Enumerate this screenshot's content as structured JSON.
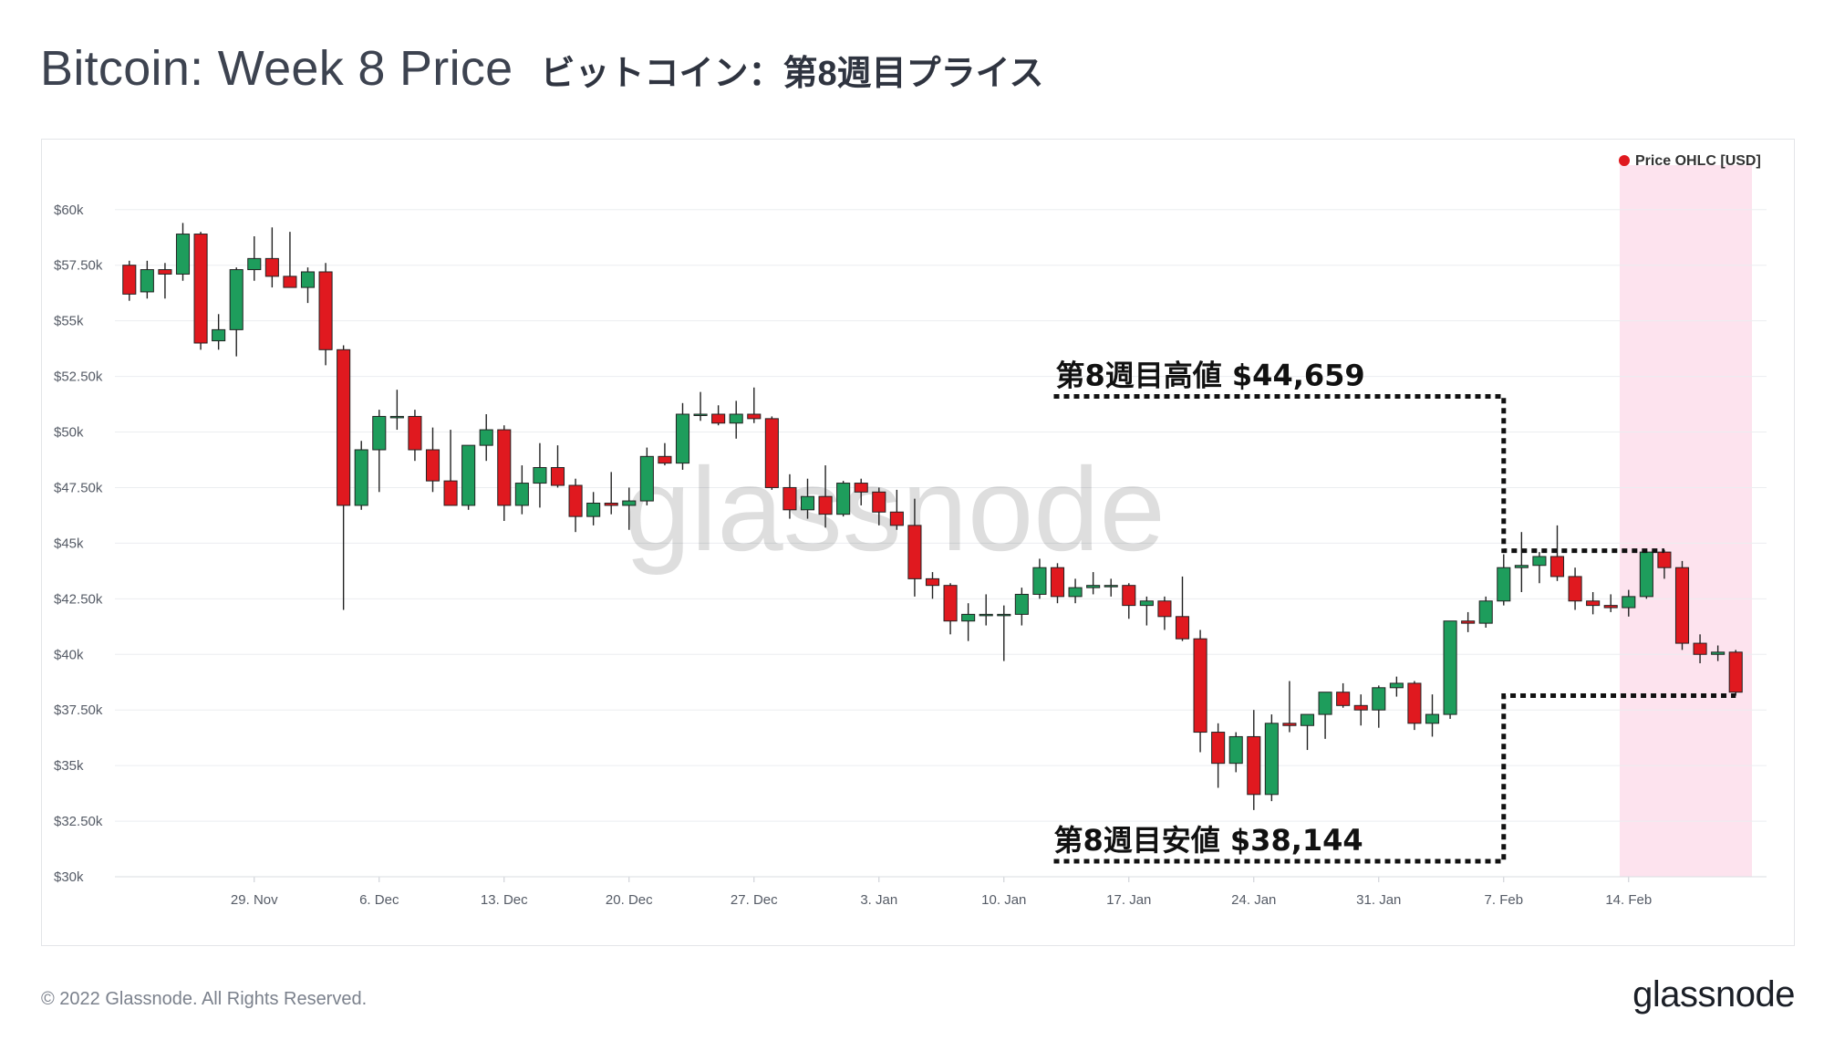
{
  "header": {
    "title_en": "Bitcoin: Week 8 Price",
    "title_ja": "ビットコイン：第8週目プライス"
  },
  "footer": {
    "copyright": "© 2022 Glassnode. All Rights Reserved.",
    "brand": "glassnode"
  },
  "chart_data": {
    "type": "candlestick",
    "watermark": "glassnode",
    "legend": {
      "label": "Price OHLC [USD]",
      "color": "#e0191f",
      "position": "top-right"
    },
    "y_axis": {
      "min": 30000,
      "max": 62000,
      "ticks": [
        30000,
        32500,
        35000,
        37500,
        40000,
        42500,
        45000,
        47500,
        50000,
        52500,
        55000,
        57500,
        60000
      ],
      "tick_labels": [
        "$30k",
        "$32.50k",
        "$35k",
        "$37.50k",
        "$40k",
        "$42.50k",
        "$45k",
        "$47.50k",
        "$50k",
        "$52.50k",
        "$55k",
        "$57.50k",
        "$60k"
      ],
      "grid": true
    },
    "x_axis": {
      "start": "2021-11-22",
      "end": "2022-02-20",
      "tick_labels": [
        "29. Nov",
        "6. Dec",
        "13. Dec",
        "20. Dec",
        "27. Dec",
        "3. Jan",
        "10. Jan",
        "17. Jan",
        "24. Jan",
        "31. Jan",
        "7. Feb",
        "14. Feb"
      ],
      "tick_dates": [
        "2021-11-29",
        "2021-12-06",
        "2021-12-13",
        "2021-12-20",
        "2021-12-27",
        "2022-01-03",
        "2022-01-10",
        "2022-01-17",
        "2022-01-24",
        "2022-01-31",
        "2022-02-07",
        "2022-02-14"
      ]
    },
    "highlight_range": {
      "start": "2022-02-14",
      "end": "2022-02-20",
      "color": "#fde3ee"
    },
    "colors": {
      "up": "#1e9d5c",
      "down": "#e0191f",
      "wick": "#222222"
    },
    "annotations": [
      {
        "text": "第8週目高値 $44,659",
        "value": 44659,
        "line_y": 51600
      },
      {
        "text": "第8週目安値 $38,144",
        "value": 38144,
        "line_y": 30700
      }
    ],
    "candles": [
      {
        "date": "2021-11-22",
        "open": 57500,
        "high": 57700,
        "low": 55900,
        "close": 56200
      },
      {
        "date": "2021-11-23",
        "open": 56300,
        "high": 57700,
        "low": 56000,
        "close": 57300
      },
      {
        "date": "2021-11-24",
        "open": 57300,
        "high": 57600,
        "low": 56000,
        "close": 57100
      },
      {
        "date": "2021-11-25",
        "open": 57100,
        "high": 59400,
        "low": 56800,
        "close": 58900
      },
      {
        "date": "2021-11-26",
        "open": 58900,
        "high": 59000,
        "low": 53700,
        "close": 54000
      },
      {
        "date": "2021-11-27",
        "open": 54100,
        "high": 55300,
        "low": 53700,
        "close": 54600
      },
      {
        "date": "2021-11-28",
        "open": 54600,
        "high": 57400,
        "low": 53400,
        "close": 57300
      },
      {
        "date": "2021-11-29",
        "open": 57300,
        "high": 58800,
        "low": 56800,
        "close": 57800
      },
      {
        "date": "2021-11-30",
        "open": 57800,
        "high": 59200,
        "low": 56500,
        "close": 57000
      },
      {
        "date": "2021-12-01",
        "open": 57000,
        "high": 59000,
        "low": 56500,
        "close": 56500
      },
      {
        "date": "2021-12-02",
        "open": 56500,
        "high": 57400,
        "low": 55800,
        "close": 57200
      },
      {
        "date": "2021-12-03",
        "open": 57200,
        "high": 57600,
        "low": 53000,
        "close": 53700
      },
      {
        "date": "2021-12-04",
        "open": 53700,
        "high": 53900,
        "low": 42000,
        "close": 46700
      },
      {
        "date": "2021-12-05",
        "open": 46700,
        "high": 49600,
        "low": 46500,
        "close": 49200
      },
      {
        "date": "2021-12-06",
        "open": 49200,
        "high": 51000,
        "low": 47300,
        "close": 50700
      },
      {
        "date": "2021-12-07",
        "open": 50700,
        "high": 51900,
        "low": 50100,
        "close": 50700
      },
      {
        "date": "2021-12-08",
        "open": 50700,
        "high": 51000,
        "low": 48700,
        "close": 49200
      },
      {
        "date": "2021-12-09",
        "open": 49200,
        "high": 50200,
        "low": 47300,
        "close": 47800
      },
      {
        "date": "2021-12-10",
        "open": 47800,
        "high": 50100,
        "low": 47000,
        "close": 46700
      },
      {
        "date": "2021-12-11",
        "open": 46700,
        "high": 49400,
        "low": 46500,
        "close": 49400
      },
      {
        "date": "2021-12-12",
        "open": 49400,
        "high": 50800,
        "low": 48700,
        "close": 50100
      },
      {
        "date": "2021-12-13",
        "open": 50100,
        "high": 50300,
        "low": 46000,
        "close": 46700
      },
      {
        "date": "2021-12-14",
        "open": 46700,
        "high": 48500,
        "low": 46300,
        "close": 47700
      },
      {
        "date": "2021-12-15",
        "open": 47700,
        "high": 49500,
        "low": 46600,
        "close": 48400
      },
      {
        "date": "2021-12-16",
        "open": 48400,
        "high": 49400,
        "low": 47500,
        "close": 47600
      },
      {
        "date": "2021-12-17",
        "open": 47600,
        "high": 47900,
        "low": 45500,
        "close": 46200
      },
      {
        "date": "2021-12-18",
        "open": 46200,
        "high": 47300,
        "low": 45800,
        "close": 46800
      },
      {
        "date": "2021-12-19",
        "open": 46800,
        "high": 48200,
        "low": 46300,
        "close": 46700
      },
      {
        "date": "2021-12-20",
        "open": 46700,
        "high": 47500,
        "low": 45600,
        "close": 46900
      },
      {
        "date": "2021-12-21",
        "open": 46900,
        "high": 49300,
        "low": 46700,
        "close": 48900
      },
      {
        "date": "2021-12-22",
        "open": 48900,
        "high": 49500,
        "low": 48500,
        "close": 48600
      },
      {
        "date": "2021-12-23",
        "open": 48600,
        "high": 51300,
        "low": 48300,
        "close": 50800
      },
      {
        "date": "2021-12-24",
        "open": 50800,
        "high": 51800,
        "low": 50500,
        "close": 50800
      },
      {
        "date": "2021-12-25",
        "open": 50800,
        "high": 51200,
        "low": 50300,
        "close": 50400
      },
      {
        "date": "2021-12-26",
        "open": 50400,
        "high": 51400,
        "low": 49700,
        "close": 50800
      },
      {
        "date": "2021-12-27",
        "open": 50800,
        "high": 52000,
        "low": 50400,
        "close": 50600
      },
      {
        "date": "2021-12-28",
        "open": 50600,
        "high": 50700,
        "low": 47400,
        "close": 47500
      },
      {
        "date": "2021-12-29",
        "open": 47500,
        "high": 48100,
        "low": 46100,
        "close": 46500
      },
      {
        "date": "2021-12-30",
        "open": 46500,
        "high": 47900,
        "low": 46100,
        "close": 47100
      },
      {
        "date": "2021-12-31",
        "open": 47100,
        "high": 48500,
        "low": 45700,
        "close": 46300
      },
      {
        "date": "2022-01-01",
        "open": 46300,
        "high": 47800,
        "low": 46200,
        "close": 47700
      },
      {
        "date": "2022-01-02",
        "open": 47700,
        "high": 47900,
        "low": 46700,
        "close": 47300
      },
      {
        "date": "2022-01-03",
        "open": 47300,
        "high": 47500,
        "low": 45800,
        "close": 46400
      },
      {
        "date": "2022-01-04",
        "open": 46400,
        "high": 47400,
        "low": 45600,
        "close": 45800
      },
      {
        "date": "2022-01-05",
        "open": 45800,
        "high": 47000,
        "low": 42600,
        "close": 43400
      },
      {
        "date": "2022-01-06",
        "open": 43400,
        "high": 43700,
        "low": 42500,
        "close": 43100
      },
      {
        "date": "2022-01-07",
        "open": 43100,
        "high": 43200,
        "low": 40900,
        "close": 41500
      },
      {
        "date": "2022-01-08",
        "open": 41500,
        "high": 42300,
        "low": 40600,
        "close": 41800
      },
      {
        "date": "2022-01-09",
        "open": 41800,
        "high": 42700,
        "low": 41300,
        "close": 41800
      },
      {
        "date": "2022-01-10",
        "open": 41800,
        "high": 42200,
        "low": 39700,
        "close": 41800
      },
      {
        "date": "2022-01-11",
        "open": 41800,
        "high": 43000,
        "low": 41300,
        "close": 42700
      },
      {
        "date": "2022-01-12",
        "open": 42700,
        "high": 44300,
        "low": 42500,
        "close": 43900
      },
      {
        "date": "2022-01-13",
        "open": 43900,
        "high": 44100,
        "low": 42300,
        "close": 42600
      },
      {
        "date": "2022-01-14",
        "open": 42600,
        "high": 43400,
        "low": 42300,
        "close": 43000
      },
      {
        "date": "2022-01-15",
        "open": 43000,
        "high": 43700,
        "low": 42700,
        "close": 43100
      },
      {
        "date": "2022-01-16",
        "open": 43100,
        "high": 43400,
        "low": 42600,
        "close": 43100
      },
      {
        "date": "2022-01-17",
        "open": 43100,
        "high": 43200,
        "low": 41600,
        "close": 42200
      },
      {
        "date": "2022-01-18",
        "open": 42200,
        "high": 42600,
        "low": 41300,
        "close": 42400
      },
      {
        "date": "2022-01-19",
        "open": 42400,
        "high": 42600,
        "low": 41100,
        "close": 41700
      },
      {
        "date": "2022-01-20",
        "open": 41700,
        "high": 43500,
        "low": 40600,
        "close": 40700
      },
      {
        "date": "2022-01-21",
        "open": 40700,
        "high": 41100,
        "low": 35600,
        "close": 36500
      },
      {
        "date": "2022-01-22",
        "open": 36500,
        "high": 36900,
        "low": 34000,
        "close": 35100
      },
      {
        "date": "2022-01-23",
        "open": 35100,
        "high": 36500,
        "low": 34700,
        "close": 36300
      },
      {
        "date": "2022-01-24",
        "open": 36300,
        "high": 37500,
        "low": 33000,
        "close": 33700
      },
      {
        "date": "2022-01-25",
        "open": 33700,
        "high": 37300,
        "low": 33400,
        "close": 36900
      },
      {
        "date": "2022-01-26",
        "open": 36900,
        "high": 38800,
        "low": 36500,
        "close": 36800
      },
      {
        "date": "2022-01-27",
        "open": 36800,
        "high": 37200,
        "low": 35700,
        "close": 37300
      },
      {
        "date": "2022-01-28",
        "open": 37300,
        "high": 38000,
        "low": 36200,
        "close": 38300
      },
      {
        "date": "2022-01-29",
        "open": 38300,
        "high": 38700,
        "low": 37600,
        "close": 37700
      },
      {
        "date": "2022-01-30",
        "open": 37700,
        "high": 38200,
        "low": 36800,
        "close": 37500
      },
      {
        "date": "2022-01-31",
        "open": 37500,
        "high": 38600,
        "low": 36700,
        "close": 38500
      },
      {
        "date": "2022-02-01",
        "open": 38500,
        "high": 39000,
        "low": 38100,
        "close": 38700
      },
      {
        "date": "2022-02-02",
        "open": 38700,
        "high": 38800,
        "low": 36600,
        "close": 36900
      },
      {
        "date": "2022-02-03",
        "open": 36900,
        "high": 38200,
        "low": 36300,
        "close": 37300
      },
      {
        "date": "2022-02-04",
        "open": 37300,
        "high": 41500,
        "low": 37100,
        "close": 41500
      },
      {
        "date": "2022-02-05",
        "open": 41500,
        "high": 41900,
        "low": 41000,
        "close": 41400
      },
      {
        "date": "2022-02-06",
        "open": 41400,
        "high": 42600,
        "low": 41200,
        "close": 42400
      },
      {
        "date": "2022-02-07",
        "open": 42400,
        "high": 44500,
        "low": 42200,
        "close": 43900
      },
      {
        "date": "2022-02-08",
        "open": 43900,
        "high": 45500,
        "low": 42800,
        "close": 44000
      },
      {
        "date": "2022-02-09",
        "open": 44000,
        "high": 44600,
        "low": 43200,
        "close": 44400
      },
      {
        "date": "2022-02-10",
        "open": 44400,
        "high": 45800,
        "low": 43300,
        "close": 43500
      },
      {
        "date": "2022-02-11",
        "open": 43500,
        "high": 43900,
        "low": 42000,
        "close": 42400
      },
      {
        "date": "2022-02-12",
        "open": 42400,
        "high": 42800,
        "low": 41800,
        "close": 42200
      },
      {
        "date": "2022-02-13",
        "open": 42200,
        "high": 42700,
        "low": 41900,
        "close": 42100
      },
      {
        "date": "2022-02-14",
        "open": 42100,
        "high": 42900,
        "low": 41700,
        "close": 42600
      },
      {
        "date": "2022-02-15",
        "open": 42600,
        "high": 44700,
        "low": 42500,
        "close": 44600
      },
      {
        "date": "2022-02-16",
        "open": 44600,
        "high": 44700,
        "low": 43400,
        "close": 43900
      },
      {
        "date": "2022-02-17",
        "open": 43900,
        "high": 44200,
        "low": 40200,
        "close": 40500
      },
      {
        "date": "2022-02-18",
        "open": 40500,
        "high": 40900,
        "low": 39600,
        "close": 40000
      },
      {
        "date": "2022-02-19",
        "open": 40000,
        "high": 40400,
        "low": 39700,
        "close": 40100
      },
      {
        "date": "2022-02-20",
        "open": 40100,
        "high": 40200,
        "low": 38144,
        "close": 38300
      }
    ]
  }
}
